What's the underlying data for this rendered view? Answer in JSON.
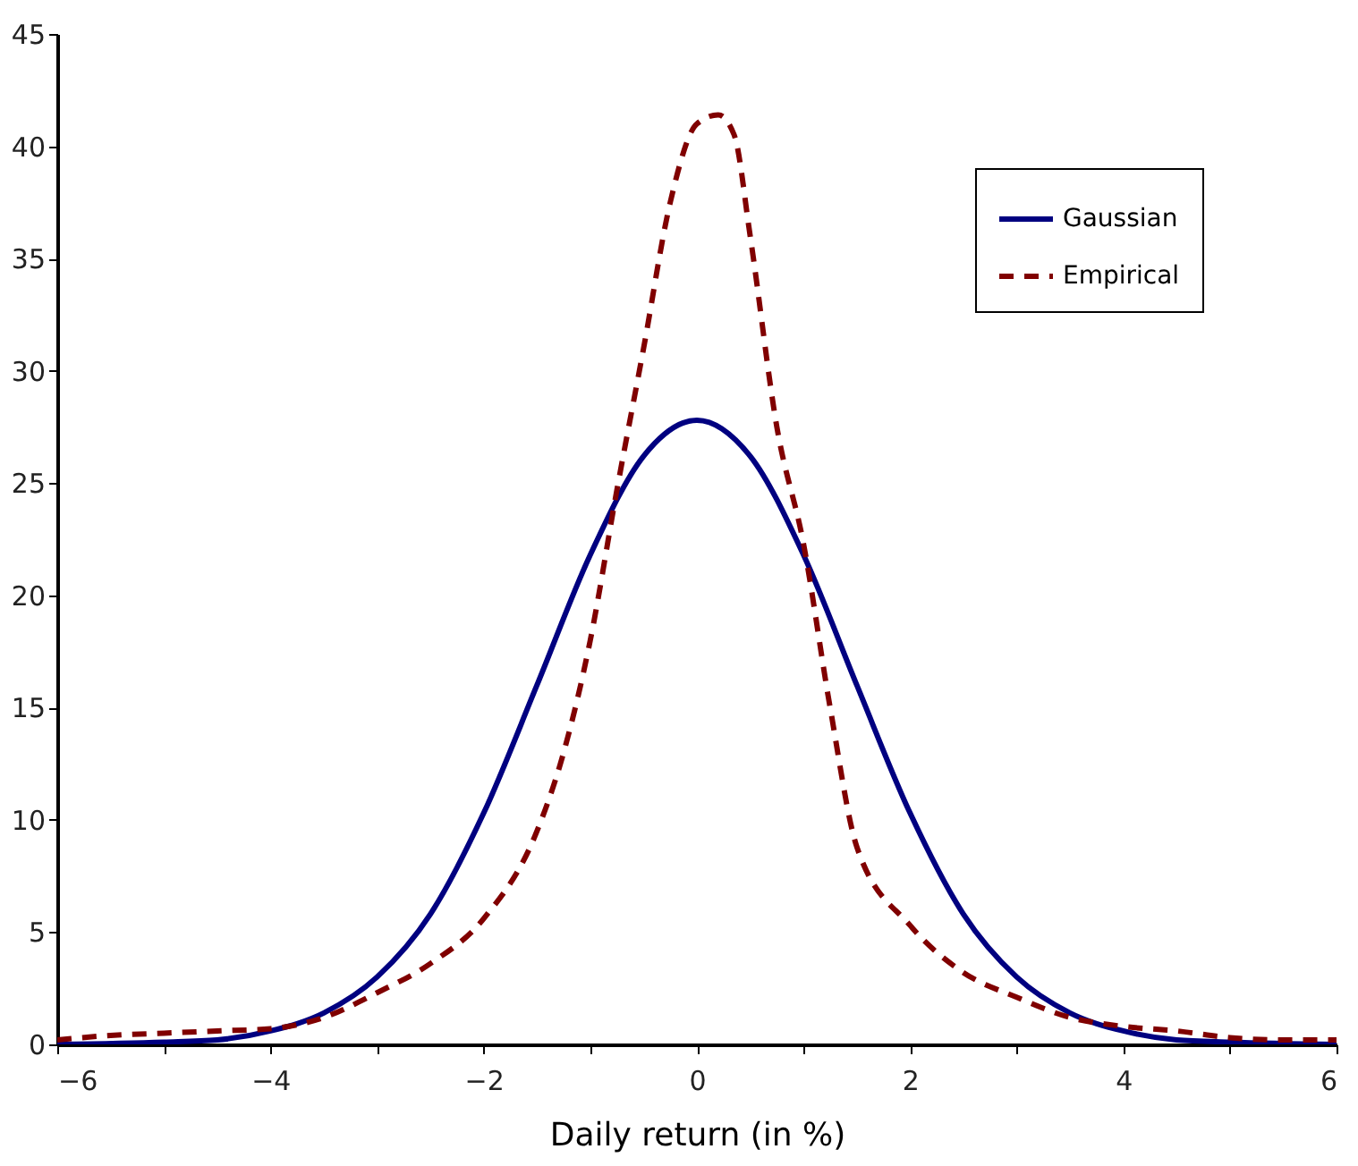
{
  "chart_data": {
    "type": "line",
    "xlabel": "Daily return (in %)",
    "xlim": [
      -6,
      6
    ],
    "xticks": [
      -6,
      {
        "value": -5,
        "label": null
      },
      -4,
      {
        "value": -3,
        "label": null
      },
      -2,
      {
        "value": -1,
        "label": null
      },
      0,
      {
        "value": 1,
        "label": null
      },
      2,
      {
        "value": 3,
        "label": null
      },
      4,
      {
        "value": 5,
        "label": null
      },
      6
    ],
    "ylim": [
      0,
      45
    ],
    "yticks": [
      0,
      5,
      10,
      15,
      20,
      25,
      30,
      35,
      40,
      45
    ],
    "grid": false,
    "legend": "top right",
    "marker": "none",
    "series": [
      {
        "name": "Gaussian",
        "color": "#000080",
        "line_style": "solid",
        "x": [
          -6,
          -5,
          -4.5,
          -4,
          -3.5,
          -3,
          -2.5,
          -2,
          -1.5,
          -1,
          -0.5,
          0,
          0.5,
          1,
          1.5,
          2,
          2.5,
          3,
          3.5,
          4,
          4.5,
          5,
          6
        ],
        "values": [
          0,
          0.1,
          0.2,
          0.6,
          1.4,
          3.0,
          5.8,
          10.3,
          16.0,
          21.8,
          26.2,
          27.8,
          26.2,
          21.8,
          16.0,
          10.3,
          5.8,
          3.0,
          1.4,
          0.6,
          0.2,
          0.1,
          0
        ]
      },
      {
        "name": "Empirical",
        "color": "#800000",
        "line_style": "dashed",
        "x": [
          -6,
          -5.5,
          -5,
          -4.5,
          -4,
          -3.5,
          -3,
          -2.5,
          -2,
          -1.5,
          -1.25,
          -1,
          -0.75,
          -0.5,
          -0.25,
          0,
          0.2,
          0.35,
          0.5,
          0.75,
          1,
          1.25,
          1.5,
          2,
          2.5,
          3,
          3.5,
          4,
          4.5,
          5,
          5.5,
          6
        ],
        "values": [
          0.2,
          0.4,
          0.5,
          0.6,
          0.7,
          1.2,
          2.3,
          3.6,
          5.6,
          9.5,
          13,
          18,
          24.7,
          31,
          37.5,
          41,
          41.4,
          40.5,
          36,
          27.5,
          22.3,
          15,
          8.8,
          5.3,
          3.2,
          2.1,
          1.2,
          0.8,
          0.6,
          0.3,
          0.2,
          0.2
        ]
      }
    ]
  }
}
